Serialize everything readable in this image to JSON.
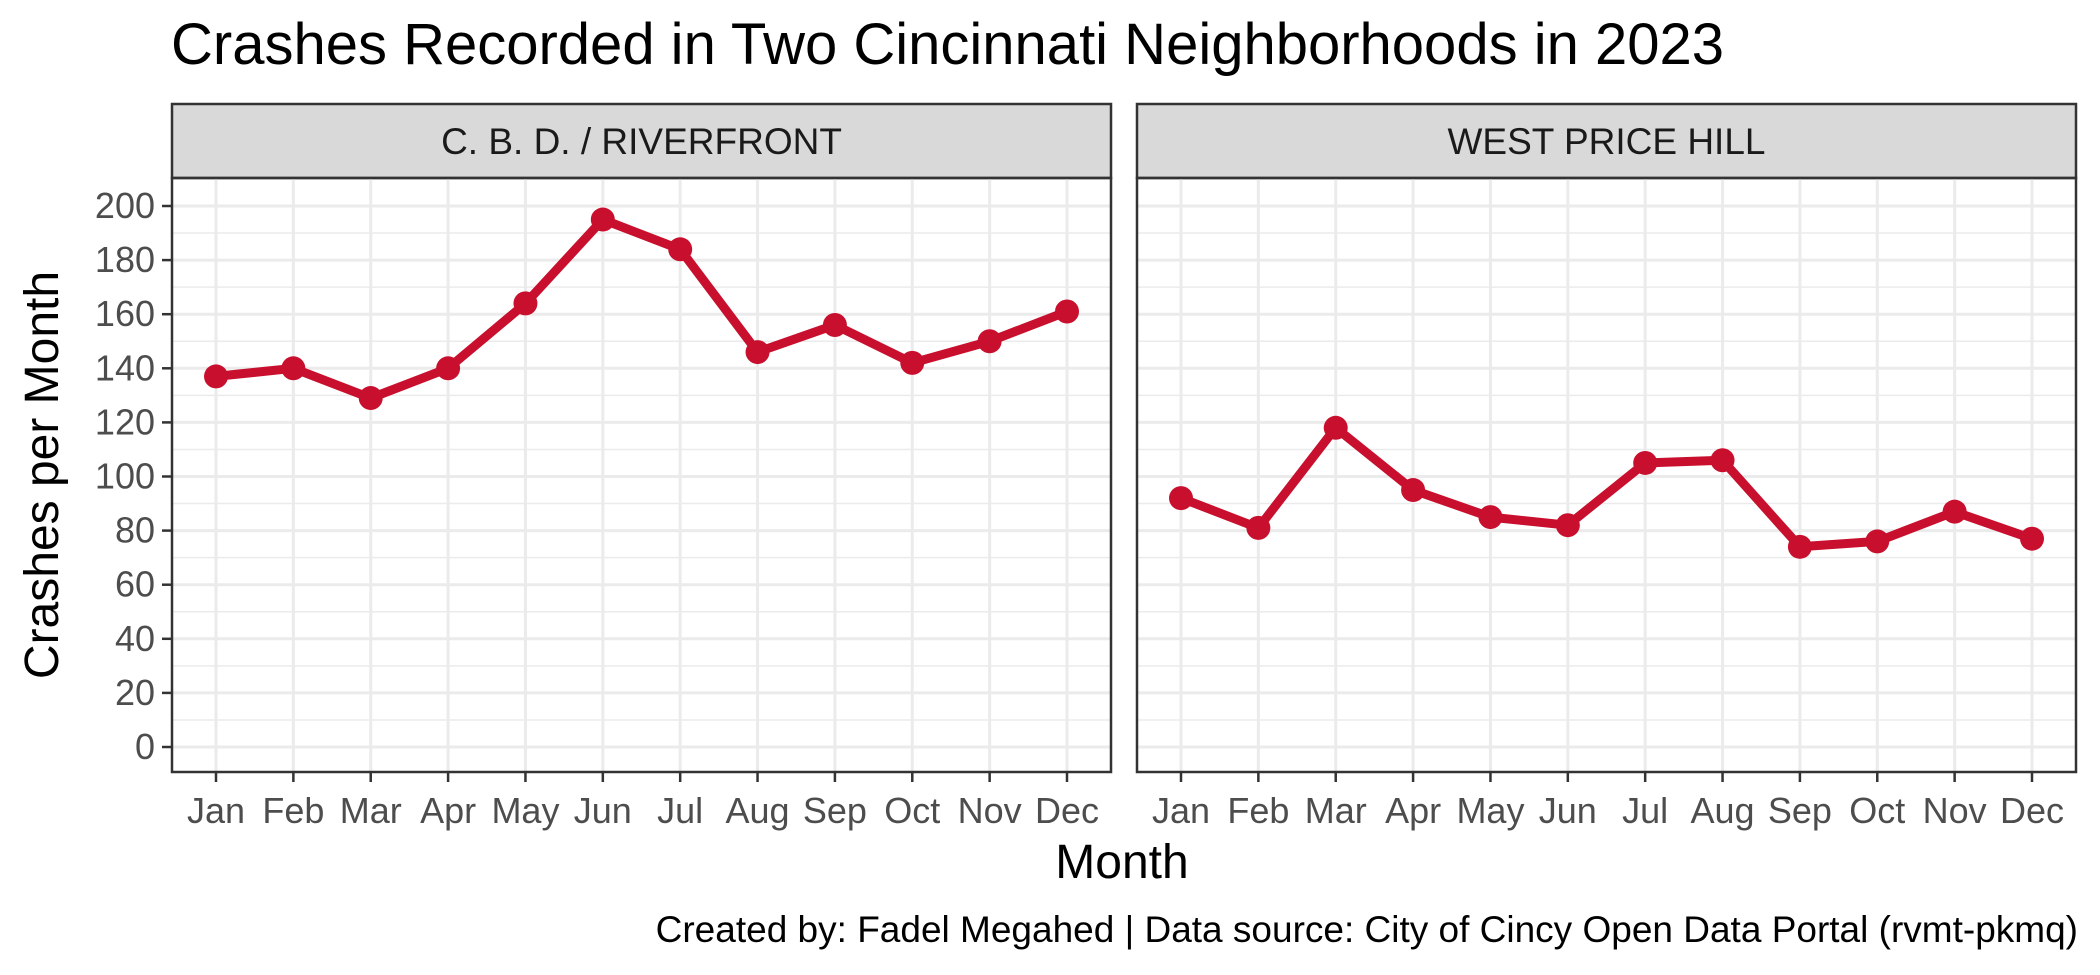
{
  "chart_data": {
    "type": "line",
    "title": "Crashes Recorded in Two Cincinnati Neighborhoods in 2023",
    "xlabel": "Month",
    "ylabel": "Crashes per Month",
    "caption": "Created by: Fadel Megahed | Data source: City of Cincy Open Data Portal (rvmt-pkmq)",
    "categories": [
      "Jan",
      "Feb",
      "Mar",
      "Apr",
      "May",
      "Jun",
      "Jul",
      "Aug",
      "Sep",
      "Oct",
      "Nov",
      "Dec"
    ],
    "ylim": [
      0,
      200
    ],
    "yticks": [
      0,
      20,
      40,
      60,
      80,
      100,
      120,
      140,
      160,
      180,
      200
    ],
    "grid": true,
    "series_color": "#c8102e",
    "panels": [
      {
        "name": "C. B. D. / RIVERFRONT",
        "values": [
          137,
          140,
          129,
          140,
          164,
          195,
          184,
          146,
          156,
          142,
          150,
          161
        ]
      },
      {
        "name": "WEST PRICE HILL",
        "values": [
          92,
          81,
          118,
          95,
          85,
          82,
          105,
          106,
          74,
          76,
          87,
          77
        ]
      }
    ]
  }
}
